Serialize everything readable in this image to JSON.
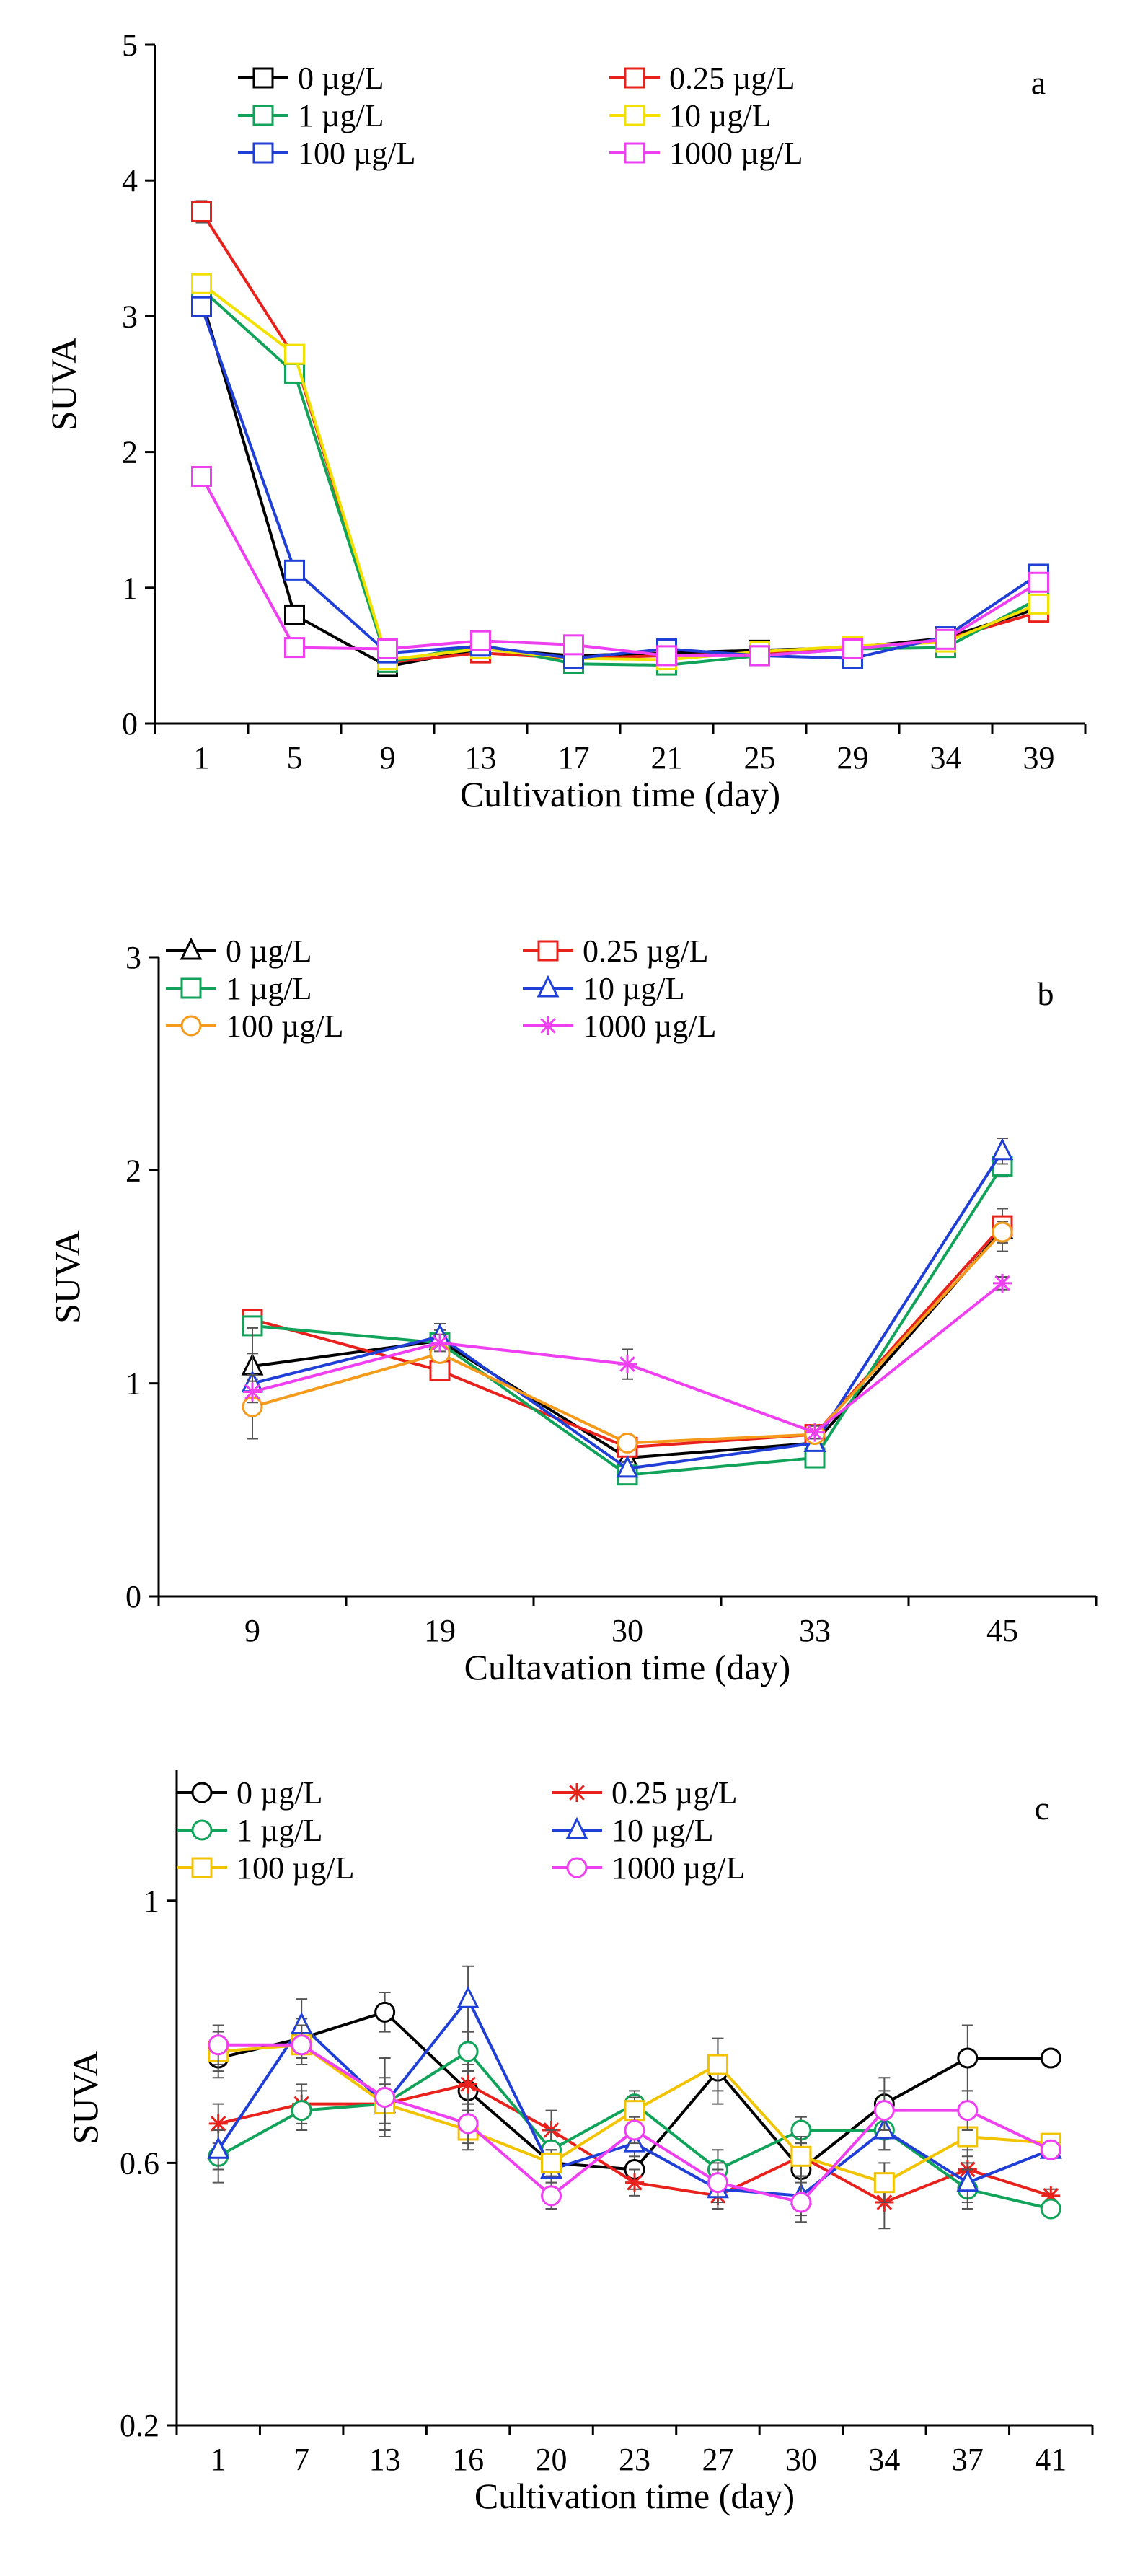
{
  "chart_data": [
    {
      "type": "line",
      "panel_label": "a",
      "title": "",
      "xlabel": "Cultivation time (day)",
      "ylabel": "SUVA",
      "categories": [
        "1",
        "5",
        "9",
        "13",
        "17",
        "21",
        "25",
        "29",
        "34",
        "39"
      ],
      "ylim": [
        0,
        5
      ],
      "yticks": [
        0,
        1,
        2,
        3,
        4,
        5
      ],
      "ytick_labels": [
        "0",
        "1",
        "2",
        "3",
        "4",
        "5"
      ],
      "legend": {
        "position": "top",
        "columns": 2
      },
      "series": [
        {
          "name": "0 µg/L",
          "color": "#000000",
          "marker": "square",
          "values": [
            3.13,
            0.8,
            0.42,
            0.55,
            0.5,
            0.52,
            0.54,
            0.56,
            0.63,
            0.85
          ],
          "errors": [
            0.05,
            0.04,
            0.03,
            0.03,
            0.03,
            0.03,
            0.03,
            0.03,
            0.03,
            0.04
          ]
        },
        {
          "name": "0.25 µg/L",
          "color": "#e8211d",
          "marker": "square",
          "values": [
            3.77,
            2.7,
            0.45,
            0.52,
            0.48,
            0.5,
            0.52,
            0.55,
            0.62,
            0.82
          ],
          "errors": [
            0.08,
            0.05,
            0.03,
            0.03,
            0.03,
            0.03,
            0.03,
            0.03,
            0.03,
            0.04
          ]
        },
        {
          "name": "1 µg/L",
          "color": "#12a35a",
          "marker": "square",
          "values": [
            3.2,
            2.58,
            0.45,
            0.58,
            0.44,
            0.43,
            0.5,
            0.55,
            0.56,
            0.92
          ],
          "errors": [
            0.05,
            0.05,
            0.03,
            0.03,
            0.03,
            0.03,
            0.03,
            0.03,
            0.03,
            0.04
          ]
        },
        {
          "name": "10 µg/L",
          "color": "#f2e100",
          "marker": "square",
          "values": [
            3.24,
            2.72,
            0.47,
            0.55,
            0.48,
            0.47,
            0.53,
            0.57,
            0.6,
            0.88
          ],
          "errors": [
            0.05,
            0.05,
            0.03,
            0.03,
            0.03,
            0.03,
            0.03,
            0.03,
            0.03,
            0.04
          ]
        },
        {
          "name": "100 µg/L",
          "color": "#1f3fd6",
          "marker": "square",
          "values": [
            3.07,
            1.13,
            0.52,
            0.57,
            0.48,
            0.55,
            0.5,
            0.48,
            0.64,
            1.1
          ],
          "errors": [
            0.05,
            0.04,
            0.03,
            0.03,
            0.03,
            0.03,
            0.03,
            0.03,
            0.03,
            0.04
          ]
        },
        {
          "name": "1000 µg/L",
          "color": "#ee3ff0",
          "marker": "square",
          "values": [
            1.82,
            0.56,
            0.55,
            0.61,
            0.58,
            0.5,
            0.5,
            0.55,
            0.62,
            1.04
          ],
          "errors": [
            0.04,
            0.04,
            0.03,
            0.03,
            0.03,
            0.03,
            0.03,
            0.03,
            0.03,
            0.04
          ]
        }
      ]
    },
    {
      "type": "line",
      "panel_label": "b",
      "title": "",
      "xlabel": "Cultavation time (day)",
      "ylabel": "SUVA",
      "categories": [
        "9",
        "19",
        "30",
        "33",
        "45"
      ],
      "ylim": [
        0,
        3
      ],
      "yticks": [
        0,
        1,
        2,
        3
      ],
      "ytick_labels": [
        "0",
        "1",
        "2",
        "3"
      ],
      "legend": {
        "position": "top",
        "columns": 2
      },
      "series": [
        {
          "name": "0 µg/L",
          "color": "#000000",
          "marker": "triangle",
          "values": [
            1.08,
            1.2,
            0.65,
            0.72,
            1.72
          ],
          "errors": [
            0.06,
            0.05,
            0.05,
            0.03,
            0.1
          ]
        },
        {
          "name": "0.25 µg/L",
          "color": "#e8211d",
          "marker": "square",
          "values": [
            1.3,
            1.06,
            0.7,
            0.76,
            1.74
          ],
          "errors": [
            0.04,
            0.03,
            0.04,
            0.03,
            0.08
          ]
        },
        {
          "name": "1 µg/L",
          "color": "#12a35a",
          "marker": "square",
          "values": [
            1.27,
            1.19,
            0.57,
            0.65,
            2.02
          ],
          "errors": [
            0.04,
            0.04,
            0.03,
            0.03,
            0.05
          ]
        },
        {
          "name": "10 µg/L",
          "color": "#1f3fd6",
          "marker": "triangle",
          "values": [
            1.0,
            1.22,
            0.6,
            0.72,
            2.09
          ],
          "errors": [
            0.26,
            0.06,
            0.03,
            0.03,
            0.06
          ]
        },
        {
          "name": "100 µg/L",
          "color": "#f59a1b",
          "marker": "circle",
          "values": [
            0.89,
            1.14,
            0.72,
            0.76,
            1.71
          ],
          "errors": [
            0.15,
            0.04,
            0.03,
            0.03,
            0.05
          ]
        },
        {
          "name": "1000 µg/L",
          "color": "#ee3ff0",
          "marker": "star",
          "values": [
            0.96,
            1.19,
            1.09,
            0.77,
            1.47
          ],
          "errors": [
            0.05,
            0.04,
            0.07,
            0.03,
            0.03
          ]
        }
      ]
    },
    {
      "type": "line",
      "panel_label": "c",
      "title": "",
      "xlabel": "Cultivation time (day)",
      "ylabel": "SUVA",
      "categories": [
        "1",
        "7",
        "13",
        "16",
        "20",
        "23",
        "27",
        "30",
        "34",
        "37",
        "41"
      ],
      "ylim": [
        0.2,
        1.2
      ],
      "yticks": [
        0.2,
        0.6,
        1.0
      ],
      "ytick_labels": [
        "0.2",
        "0.6",
        "1"
      ],
      "legend": {
        "position": "top",
        "columns": 2
      },
      "series": [
        {
          "name": "0 µg/L",
          "color": "#000000",
          "marker": "circle",
          "values": [
            0.76,
            0.79,
            0.83,
            0.71,
            0.6,
            0.59,
            0.74,
            0.59,
            0.69,
            0.76,
            0.76
          ],
          "errors": [
            0.03,
            0.03,
            0.03,
            0.03,
            0.03,
            0.03,
            0.05,
            0.04,
            0.04,
            0.05,
            0.01
          ]
        },
        {
          "name": "0.25 µg/L",
          "color": "#e8211d",
          "marker": "star",
          "values": [
            0.66,
            0.69,
            0.69,
            0.72,
            0.65,
            0.57,
            0.55,
            0.61,
            0.54,
            0.59,
            0.55
          ],
          "errors": [
            0.03,
            0.03,
            0.03,
            0.03,
            0.03,
            0.02,
            0.02,
            0.03,
            0.04,
            0.03,
            0.01
          ]
        },
        {
          "name": "1 µg/L",
          "color": "#12a35a",
          "marker": "circle",
          "values": [
            0.61,
            0.68,
            0.69,
            0.77,
            0.62,
            0.69,
            0.59,
            0.65,
            0.65,
            0.56,
            0.53
          ],
          "errors": [
            0.04,
            0.03,
            0.03,
            0.03,
            0.03,
            0.02,
            0.03,
            0.02,
            0.03,
            0.03,
            0.01
          ]
        },
        {
          "name": "10 µg/L",
          "color": "#1f3fd6",
          "marker": "triangle",
          "values": [
            0.62,
            0.81,
            0.69,
            0.85,
            0.59,
            0.63,
            0.56,
            0.55,
            0.65,
            0.57,
            0.62
          ],
          "errors": [
            0.03,
            0.04,
            0.03,
            0.05,
            0.03,
            0.02,
            0.03,
            0.03,
            0.03,
            0.03,
            0.01
          ]
        },
        {
          "name": "100 µg/L",
          "color": "#f2c300",
          "marker": "square",
          "values": [
            0.77,
            0.78,
            0.69,
            0.65,
            0.6,
            0.68,
            0.75,
            0.61,
            0.57,
            0.64,
            0.63
          ],
          "errors": [
            0.03,
            0.03,
            0.04,
            0.03,
            0.02,
            0.02,
            0.04,
            0.03,
            0.03,
            0.03,
            0.01
          ]
        },
        {
          "name": "1000 µg/L",
          "color": "#ee3ff0",
          "marker": "circle",
          "values": [
            0.78,
            0.78,
            0.7,
            0.66,
            0.55,
            0.65,
            0.57,
            0.54,
            0.68,
            0.68,
            0.62
          ],
          "errors": [
            0.03,
            0.03,
            0.06,
            0.03,
            0.02,
            0.02,
            0.03,
            0.03,
            0.03,
            0.03,
            0.01
          ]
        }
      ]
    }
  ]
}
